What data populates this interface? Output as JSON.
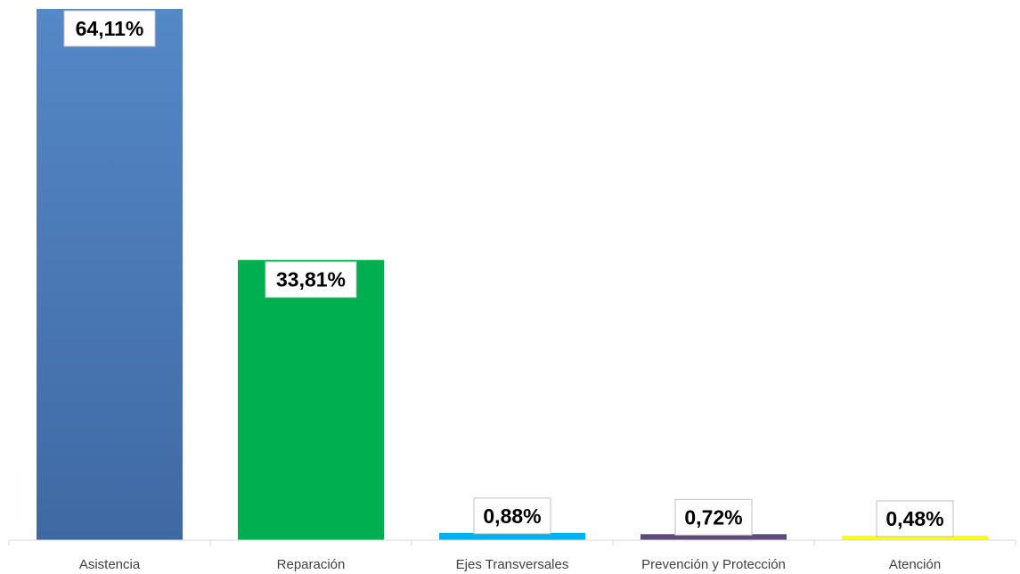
{
  "chart_data": {
    "type": "bar",
    "categories": [
      "Asistencia",
      "Reparación",
      "Ejes Transversales",
      "Prevención y Protección",
      "Atención"
    ],
    "values": [
      64.11,
      33.81,
      0.88,
      0.72,
      0.48
    ],
    "data_labels": [
      "64,11%",
      "33,81%",
      "0,88%",
      "0,72%",
      "0,48%"
    ],
    "colors": [
      "#4a78b5",
      "#00b050",
      "#00b0f0",
      "#604a7b",
      "#ffff00"
    ],
    "title": "",
    "xlabel": "",
    "ylabel": "",
    "ylim": [
      0,
      64.11
    ],
    "grid": false,
    "legend": "none"
  }
}
